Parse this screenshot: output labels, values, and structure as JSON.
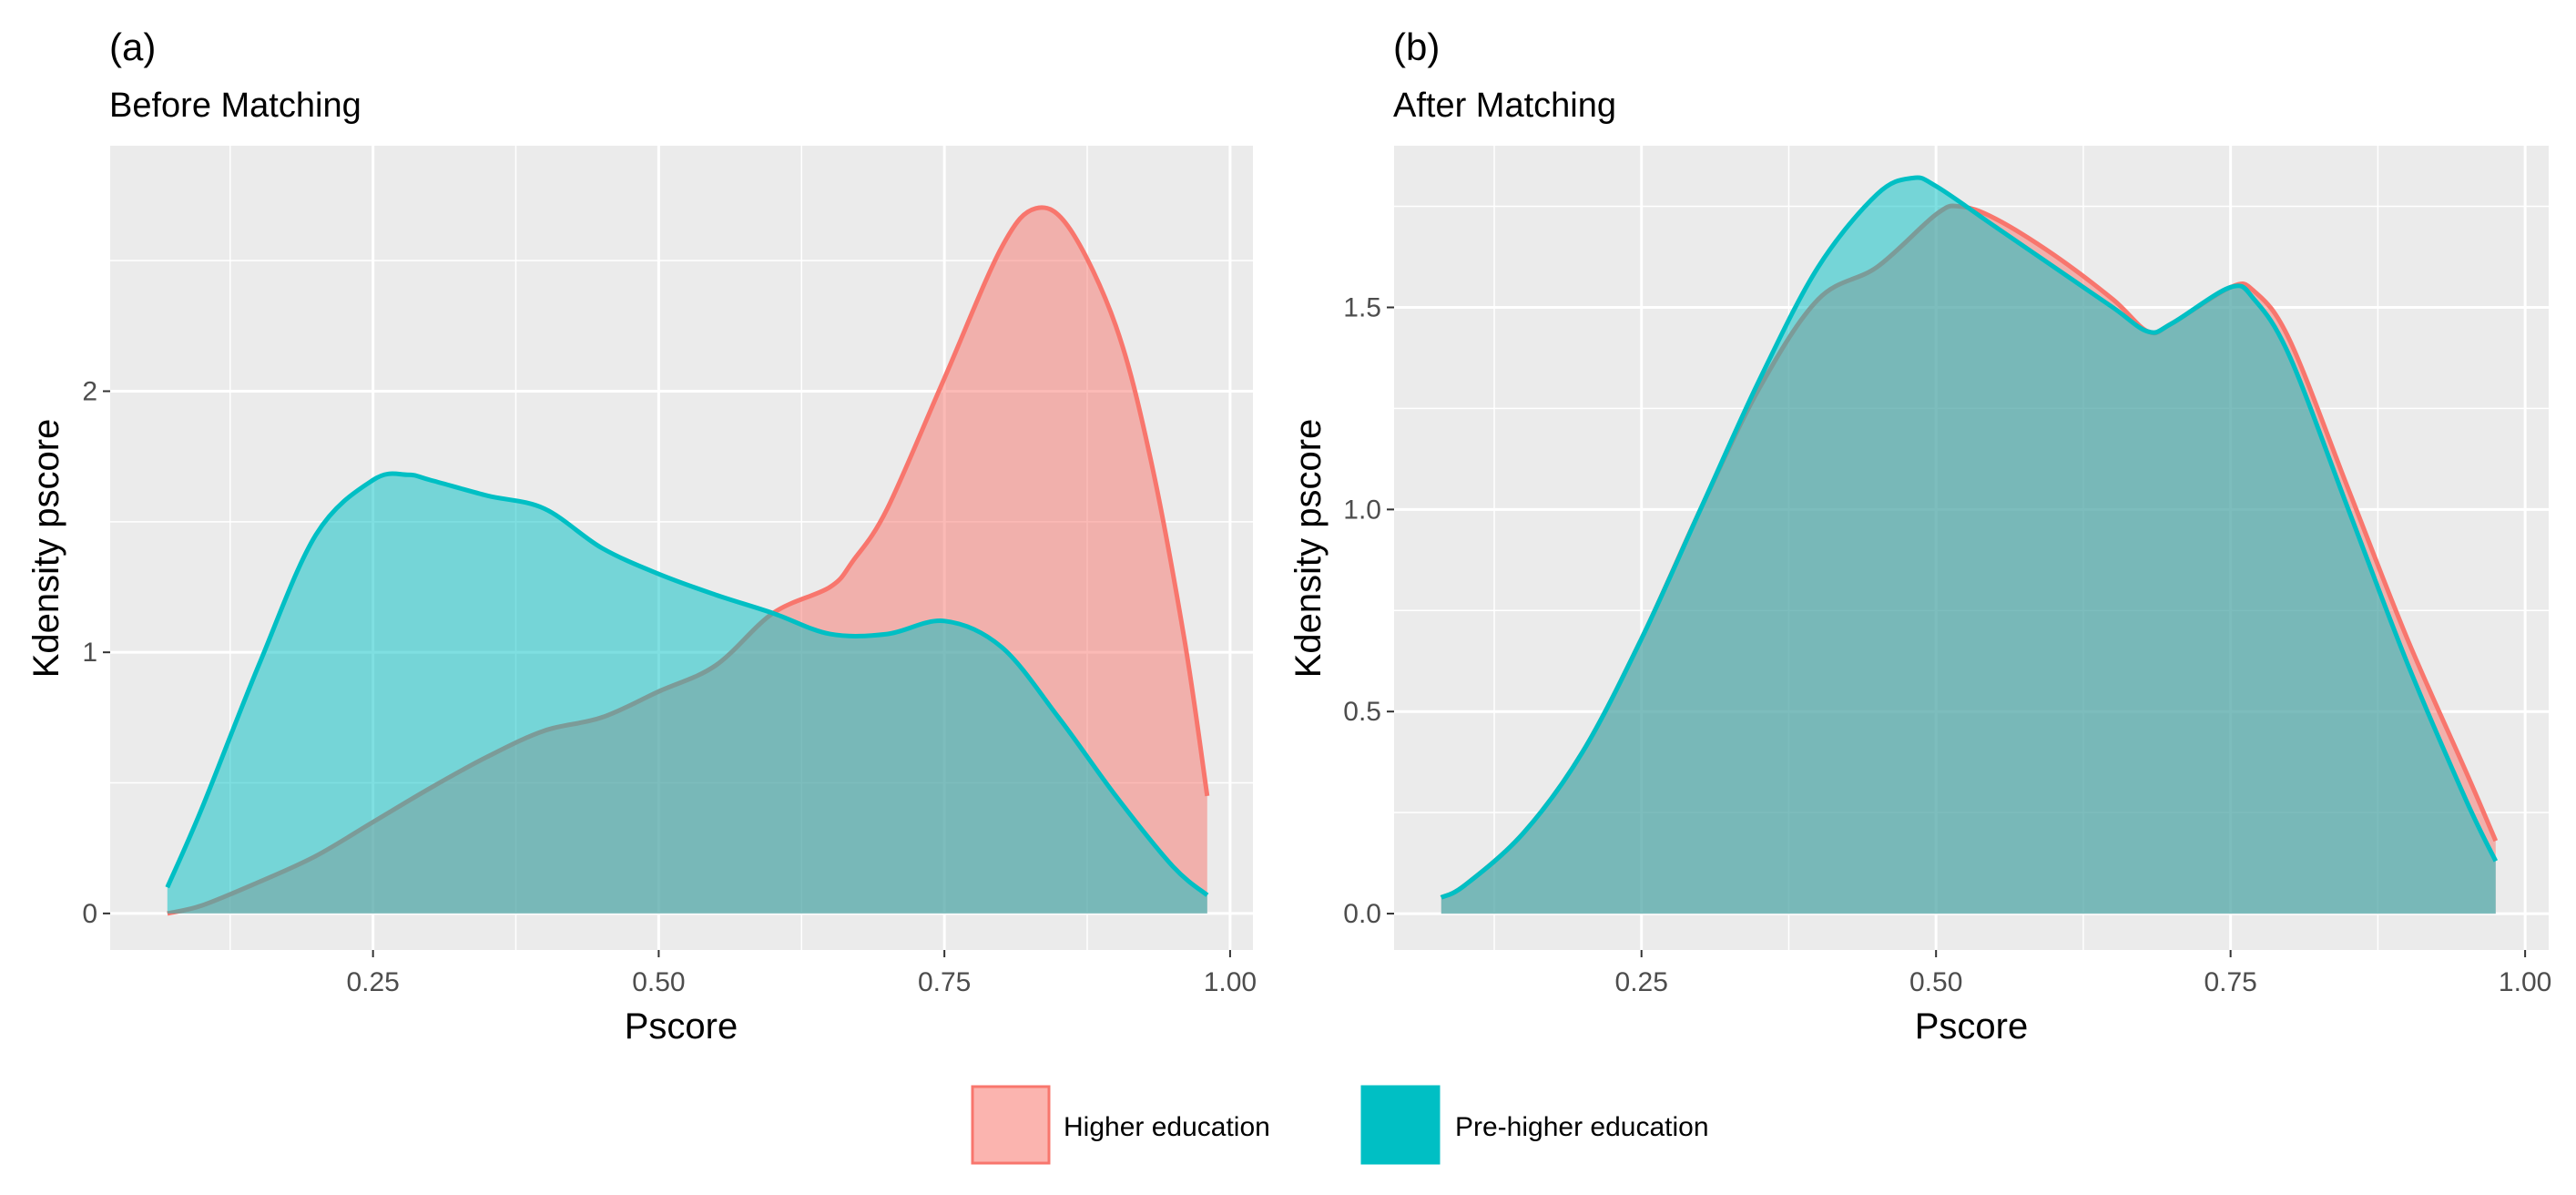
{
  "chart_data": [
    {
      "type": "area",
      "panel_label": "(a)",
      "title": "Before Matching",
      "xlabel": "Pscore",
      "ylabel": "Kdensity pscore",
      "xlim": [
        0.02,
        1.02
      ],
      "ylim": [
        -0.14,
        2.94
      ],
      "xticks": [
        0.25,
        0.5,
        0.75,
        1.0
      ],
      "xtick_labels": [
        "0.25",
        "0.50",
        "0.75",
        "1.00"
      ],
      "yticks": [
        0,
        1,
        2
      ],
      "ytick_labels": [
        "0",
        "1",
        "2"
      ],
      "grid": true,
      "series": [
        {
          "name": "Higher education",
          "x": [
            0.07,
            0.1,
            0.15,
            0.2,
            0.25,
            0.3,
            0.35,
            0.4,
            0.45,
            0.5,
            0.55,
            0.6,
            0.65,
            0.67,
            0.7,
            0.75,
            0.8,
            0.83,
            0.86,
            0.9,
            0.93,
            0.96,
            0.98
          ],
          "y": [
            0.0,
            0.03,
            0.12,
            0.22,
            0.35,
            0.48,
            0.6,
            0.7,
            0.75,
            0.85,
            0.95,
            1.15,
            1.25,
            1.35,
            1.55,
            2.05,
            2.55,
            2.7,
            2.62,
            2.25,
            1.75,
            1.05,
            0.45
          ]
        },
        {
          "name": "Pre-higher education",
          "x": [
            0.07,
            0.1,
            0.15,
            0.2,
            0.25,
            0.28,
            0.3,
            0.35,
            0.4,
            0.45,
            0.5,
            0.55,
            0.6,
            0.65,
            0.7,
            0.75,
            0.8,
            0.85,
            0.9,
            0.95,
            0.98
          ],
          "y": [
            0.1,
            0.4,
            0.95,
            1.45,
            1.66,
            1.68,
            1.66,
            1.6,
            1.55,
            1.4,
            1.3,
            1.22,
            1.15,
            1.07,
            1.07,
            1.12,
            1.02,
            0.75,
            0.45,
            0.18,
            0.07
          ]
        }
      ]
    },
    {
      "type": "area",
      "panel_label": "(b)",
      "title": "After Matching",
      "xlabel": "Pscore",
      "ylabel": "Kdensity pscore",
      "xlim": [
        0.04,
        1.02
      ],
      "ylim": [
        -0.09,
        1.9
      ],
      "xticks": [
        0.25,
        0.5,
        0.75,
        1.0
      ],
      "xtick_labels": [
        "0.25",
        "0.50",
        "0.75",
        "1.00"
      ],
      "yticks": [
        0.0,
        0.5,
        1.0,
        1.5
      ],
      "ytick_labels": [
        "0.0",
        "0.5",
        "1.0",
        "1.5"
      ],
      "grid": true,
      "series": [
        {
          "name": "Higher education",
          "x": [
            0.08,
            0.1,
            0.15,
            0.2,
            0.25,
            0.3,
            0.35,
            0.4,
            0.45,
            0.5,
            0.52,
            0.55,
            0.6,
            0.65,
            0.68,
            0.7,
            0.75,
            0.77,
            0.8,
            0.85,
            0.9,
            0.95,
            0.975
          ],
          "y": [
            0.04,
            0.07,
            0.2,
            0.4,
            0.68,
            1.0,
            1.3,
            1.52,
            1.6,
            1.73,
            1.75,
            1.72,
            1.63,
            1.52,
            1.44,
            1.46,
            1.55,
            1.54,
            1.42,
            1.05,
            0.68,
            0.35,
            0.18
          ]
        },
        {
          "name": "Pre-higher education",
          "x": [
            0.08,
            0.1,
            0.15,
            0.2,
            0.25,
            0.3,
            0.35,
            0.4,
            0.45,
            0.48,
            0.5,
            0.55,
            0.6,
            0.65,
            0.68,
            0.7,
            0.75,
            0.77,
            0.8,
            0.85,
            0.9,
            0.95,
            0.975
          ],
          "y": [
            0.04,
            0.07,
            0.2,
            0.4,
            0.68,
            1.0,
            1.32,
            1.6,
            1.78,
            1.82,
            1.8,
            1.7,
            1.6,
            1.5,
            1.44,
            1.46,
            1.55,
            1.52,
            1.38,
            1.0,
            0.62,
            0.28,
            0.13
          ]
        }
      ]
    }
  ],
  "legend": {
    "items": [
      {
        "name": "Higher education",
        "label": "Higher education"
      },
      {
        "name": "Pre-higher education",
        "label": "Pre-higher education"
      }
    ]
  },
  "colors": {
    "higher_fill": "#F8766D",
    "higher_line": "#F8766D",
    "pre_fill": "#00BFC4",
    "pre_line": "#00BFC4",
    "panel_bg": "#EBEBEB",
    "grid": "#FFFFFF",
    "tick_text": "#4D4D4D"
  }
}
